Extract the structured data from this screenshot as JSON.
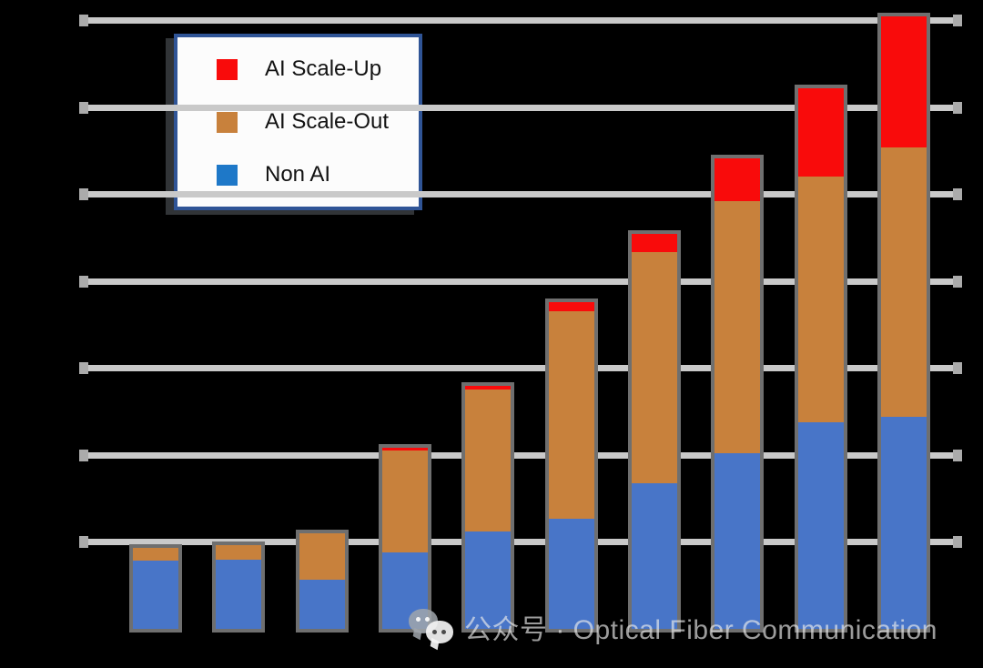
{
  "chart_data": {
    "type": "bar",
    "stacked": true,
    "orientation": "vertical",
    "bar_count": 10,
    "title": "",
    "xlabel": "",
    "ylabel": "",
    "x_tick_labels_visible": false,
    "y_tick_labels_visible": false,
    "grid": "horizontal-gray",
    "background": "black",
    "ylim": [
      0,
      7.3
    ],
    "y_unit_per_gridline": 1,
    "gridline_count": 7,
    "legend_position": "top-left",
    "series": [
      {
        "name": "Non AI",
        "color": "#4875C8",
        "values": [
          0.79,
          0.8,
          0.57,
          0.88,
          1.12,
          1.27,
          1.67,
          2.02,
          2.38,
          2.44
        ]
      },
      {
        "name": "AI Scale-Out",
        "color": "#C8813C",
        "values": [
          0.14,
          0.16,
          0.53,
          1.17,
          1.63,
          2.38,
          2.66,
          2.9,
          2.82,
          3.1
        ]
      },
      {
        "name": "AI Scale-Up",
        "color": "#F90B0B",
        "values": [
          0.0,
          0.0,
          0.0,
          0.03,
          0.05,
          0.11,
          0.21,
          0.49,
          1.02,
          1.51
        ]
      }
    ],
    "totals": [
      0.93,
      0.96,
      1.1,
      2.08,
      2.8,
      3.76,
      4.54,
      5.41,
      6.22,
      7.05
    ]
  },
  "legend": {
    "background": "#FCFCFC",
    "border_color": "#2F5496",
    "items": [
      {
        "label": "AI Scale-Up",
        "color": "#F90B0B"
      },
      {
        "label": "AI Scale-Out",
        "color": "#C8813C"
      },
      {
        "label": "Non AI",
        "color": "#1E78C8"
      }
    ]
  },
  "watermark": {
    "icon": "wechat-icon",
    "text": "公众号 · Optical Fiber Communication",
    "color": "#BEBEBE"
  },
  "colors": {
    "background": "#000000",
    "gridline": "#C9C9C9",
    "bar_outline": "#6F6F6F"
  }
}
